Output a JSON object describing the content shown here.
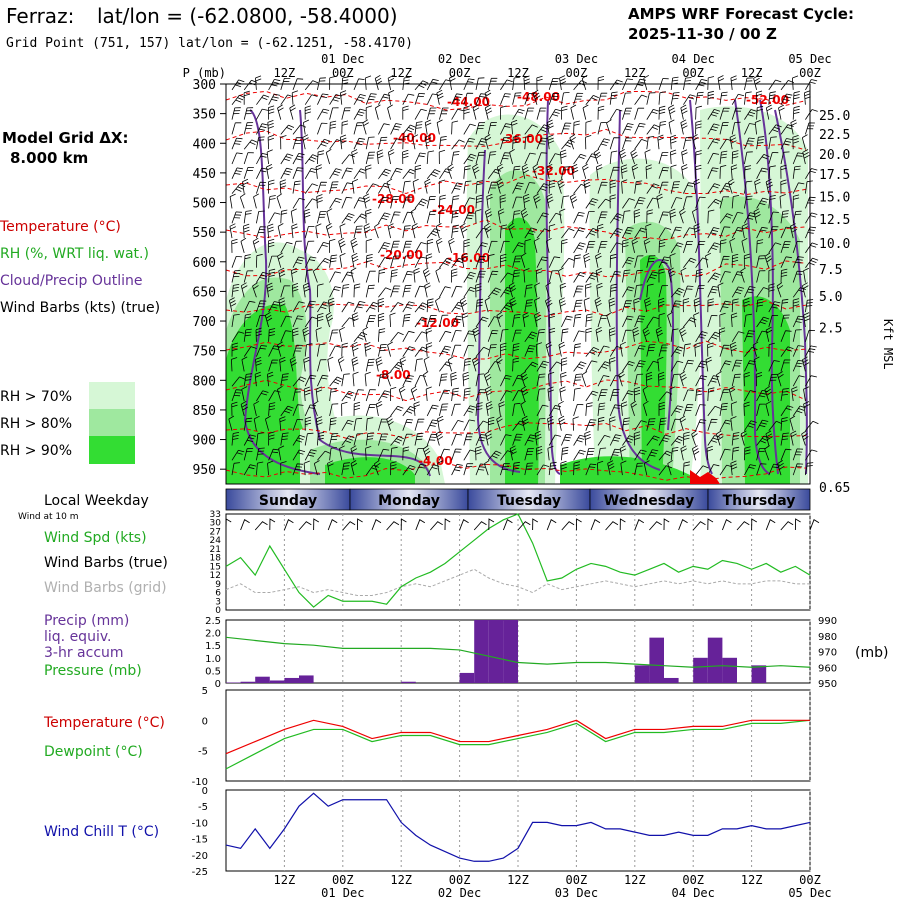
{
  "header": {
    "station": "Ferraz:",
    "latlon_label": "lat/lon = (-62.0800, -58.4000)",
    "grid_point": "Grid Point (751, 157) lat/lon = (-62.1251, -58.4170)",
    "forecast_title": "AMPS WRF Forecast Cycle:",
    "forecast_cycle": "2025-11-30 / 00  Z"
  },
  "model_grid": {
    "label": "Model Grid ΔX:",
    "value": "8.000 km"
  },
  "legend": {
    "temperature": "Temperature (°C)",
    "rh": "RH (%, WRT liq. wat.)",
    "cloud": "Cloud/Precip Outline",
    "wind_barbs": "Wind Barbs (kts) (true)",
    "rh70": "RH > 70%",
    "rh80": "RH > 80%",
    "rh90": "RH > 90%"
  },
  "colors": {
    "rh70": "#d6f7d6",
    "rh80": "#9fe89f",
    "rh90": "#33dd33",
    "temp": "#ee0000",
    "cloud": "#663399",
    "windspd": "#22bb22",
    "pressure": "#22aa22",
    "precip": "#662299",
    "dewpoint": "#22bb22",
    "windchill": "#1111aa"
  },
  "time_axis": {
    "top_hours": [
      "12Z",
      "00Z",
      "12Z",
      "00Z",
      "12Z",
      "00Z",
      "12Z",
      "00Z",
      "12Z",
      "00Z"
    ],
    "top_dates": [
      "01 Dec",
      "02 Dec",
      "03 Dec",
      "04 Dec",
      "05 Dec"
    ],
    "bottom_hours": [
      "12Z",
      "00Z",
      "12Z",
      "00Z",
      "12Z",
      "00Z",
      "12Z",
      "00Z",
      "12Z",
      "00Z"
    ],
    "bottom_dates": [
      "01 Dec",
      "02 Dec",
      "03 Dec",
      "04 Dec",
      "05 Dec"
    ]
  },
  "chart_data": [
    {
      "type": "heatmap",
      "ylabel": "P (mb)",
      "y_ticks": [
        300,
        350,
        400,
        450,
        500,
        550,
        600,
        650,
        700,
        750,
        800,
        850,
        900,
        950
      ],
      "ylim": [
        300,
        975
      ],
      "right_axis_label": "Kft MSL",
      "right_ticks": [
        "25.0",
        "22.5",
        "20.0",
        "17.5",
        "15.0",
        "12.5",
        "10.0",
        "7.5",
        "5.0",
        "2.5",
        "0.65"
      ],
      "temperature_labels": [
        "-44.00",
        "-48.00",
        "-52.00",
        "-40.00",
        "-36.00",
        "-32.00",
        "-28.00",
        "-24.00",
        "-20.00",
        "-16.00",
        "-12.00",
        "-8.00",
        "-4.00"
      ]
    },
    {
      "type": "bar",
      "categories": [
        "Sunday",
        "Monday",
        "Tuesday",
        "Wednesday",
        "Thursday"
      ],
      "title": "Local Weekday",
      "subtitle": "Wind at 10 m"
    },
    {
      "type": "line",
      "series_labels": [
        "Wind Spd (kts)",
        "Wind Barbs (true)",
        "Wind Barbs (grid)"
      ],
      "ylim": [
        0,
        33
      ],
      "y_ticks": [
        0,
        3,
        6,
        9,
        12,
        15,
        18,
        21,
        24,
        27,
        30,
        33
      ],
      "x": [
        0,
        3,
        6,
        9,
        12,
        15,
        18,
        21,
        24,
        27,
        30,
        33,
        36,
        39,
        42,
        45,
        48,
        51,
        54,
        57,
        60,
        63,
        66,
        69,
        72,
        75,
        78,
        81,
        84,
        87,
        90,
        93,
        96,
        99,
        102,
        105,
        108,
        111,
        114,
        117,
        120
      ],
      "wind_speed": [
        15,
        18,
        12,
        22,
        14,
        6,
        1,
        5,
        3,
        3,
        3,
        2,
        8,
        11,
        13,
        16,
        20,
        24,
        28,
        31,
        33,
        23,
        10,
        11,
        14,
        16,
        15,
        13,
        12,
        14,
        16,
        13,
        15,
        14,
        17,
        16,
        14,
        16,
        13,
        15,
        12
      ],
      "wind_grid": [
        7,
        9,
        6,
        6,
        7,
        8,
        6,
        7,
        6,
        5,
        5,
        6,
        8,
        9,
        8,
        10,
        12,
        14,
        11,
        9,
        8,
        6,
        9,
        7,
        8,
        9,
        10,
        9,
        8,
        9,
        10,
        9,
        10,
        9,
        10,
        9,
        9,
        10,
        10,
        9,
        9
      ]
    },
    {
      "type": "bar",
      "series_labels": [
        "Precip (mm)",
        "liq. equiv.",
        "3-hr accum",
        "Pressure (mb)"
      ],
      "ylim_precip": [
        0,
        2.5
      ],
      "y_ticks_precip": [
        "0",
        "0.5",
        "1.0",
        "1.5",
        "2.0",
        "2.5"
      ],
      "ylim_pressure": [
        950,
        990
      ],
      "y_ticks_pressure": [
        "950",
        "960",
        "970",
        "980",
        "990"
      ],
      "pressure_unit": "(mb)",
      "precip_x": [
        3,
        6,
        9,
        12,
        15,
        18,
        21,
        27,
        33,
        39,
        45,
        51,
        54,
        57,
        60,
        63,
        87,
        90,
        93,
        99,
        102,
        105,
        111
      ],
      "precip": [
        0.02,
        0.05,
        0.25,
        0.1,
        0.2,
        0.3,
        0.0,
        0.0,
        0.0,
        0.05,
        0.0,
        0.4,
        2.5,
        2.5,
        2.5,
        0.0,
        0.7,
        1.8,
        0.2,
        1.0,
        1.8,
        1.0,
        0.7
      ],
      "x": [
        0,
        6,
        12,
        18,
        24,
        30,
        36,
        42,
        48,
        54,
        60,
        66,
        72,
        78,
        84,
        90,
        96,
        102,
        108,
        114,
        120
      ],
      "pressure": [
        979,
        977,
        975,
        974,
        972,
        972,
        972,
        972,
        971,
        967,
        963,
        962,
        963,
        963,
        962,
        961,
        960,
        961,
        960,
        961,
        960
      ]
    },
    {
      "type": "line",
      "series_labels": [
        "Temperature (°C)",
        "Dewpoint (°C)"
      ],
      "ylim": [
        -10,
        5
      ],
      "y_ticks": [
        "5",
        "0",
        "-5",
        "-10"
      ],
      "x": [
        0,
        6,
        12,
        18,
        24,
        30,
        36,
        42,
        48,
        54,
        60,
        66,
        72,
        78,
        84,
        90,
        96,
        102,
        108,
        114,
        120
      ],
      "temperature": [
        -5.5,
        -3.5,
        -1.5,
        0,
        -1,
        -3,
        -2,
        -2,
        -3.5,
        -3.5,
        -2.5,
        -1.5,
        0,
        -3,
        -1.5,
        -1.5,
        -1,
        -1,
        0,
        0,
        0
      ],
      "dewpoint": [
        -8,
        -5.5,
        -3,
        -1.5,
        -1.5,
        -3.5,
        -2.5,
        -2.5,
        -4,
        -4,
        -3,
        -2,
        -0.5,
        -3.5,
        -2,
        -2,
        -1.5,
        -1.5,
        -0.5,
        -0.5,
        0
      ]
    },
    {
      "type": "line",
      "series_labels": [
        "Wind Chill T (°C)"
      ],
      "ylim": [
        -25,
        0
      ],
      "y_ticks": [
        "0",
        "-5",
        "-10",
        "-15",
        "-20",
        "-25"
      ],
      "x": [
        0,
        3,
        6,
        9,
        12,
        15,
        18,
        21,
        24,
        27,
        30,
        33,
        36,
        39,
        42,
        45,
        48,
        51,
        54,
        57,
        60,
        63,
        66,
        69,
        72,
        75,
        78,
        81,
        84,
        87,
        90,
        93,
        96,
        99,
        102,
        105,
        108,
        111,
        114,
        117,
        120
      ],
      "windchill": [
        -17,
        -18,
        -12,
        -18,
        -12,
        -5,
        -1,
        -5,
        -3,
        -3,
        -3,
        -3,
        -10,
        -14,
        -17,
        -19,
        -21,
        -22,
        -22,
        -21,
        -18,
        -10,
        -10,
        -11,
        -11,
        -10,
        -12,
        -12,
        -13,
        -14,
        -14,
        -13,
        -14,
        -14,
        -12,
        -12,
        -11,
        -12,
        -12,
        -11,
        -10
      ]
    }
  ]
}
